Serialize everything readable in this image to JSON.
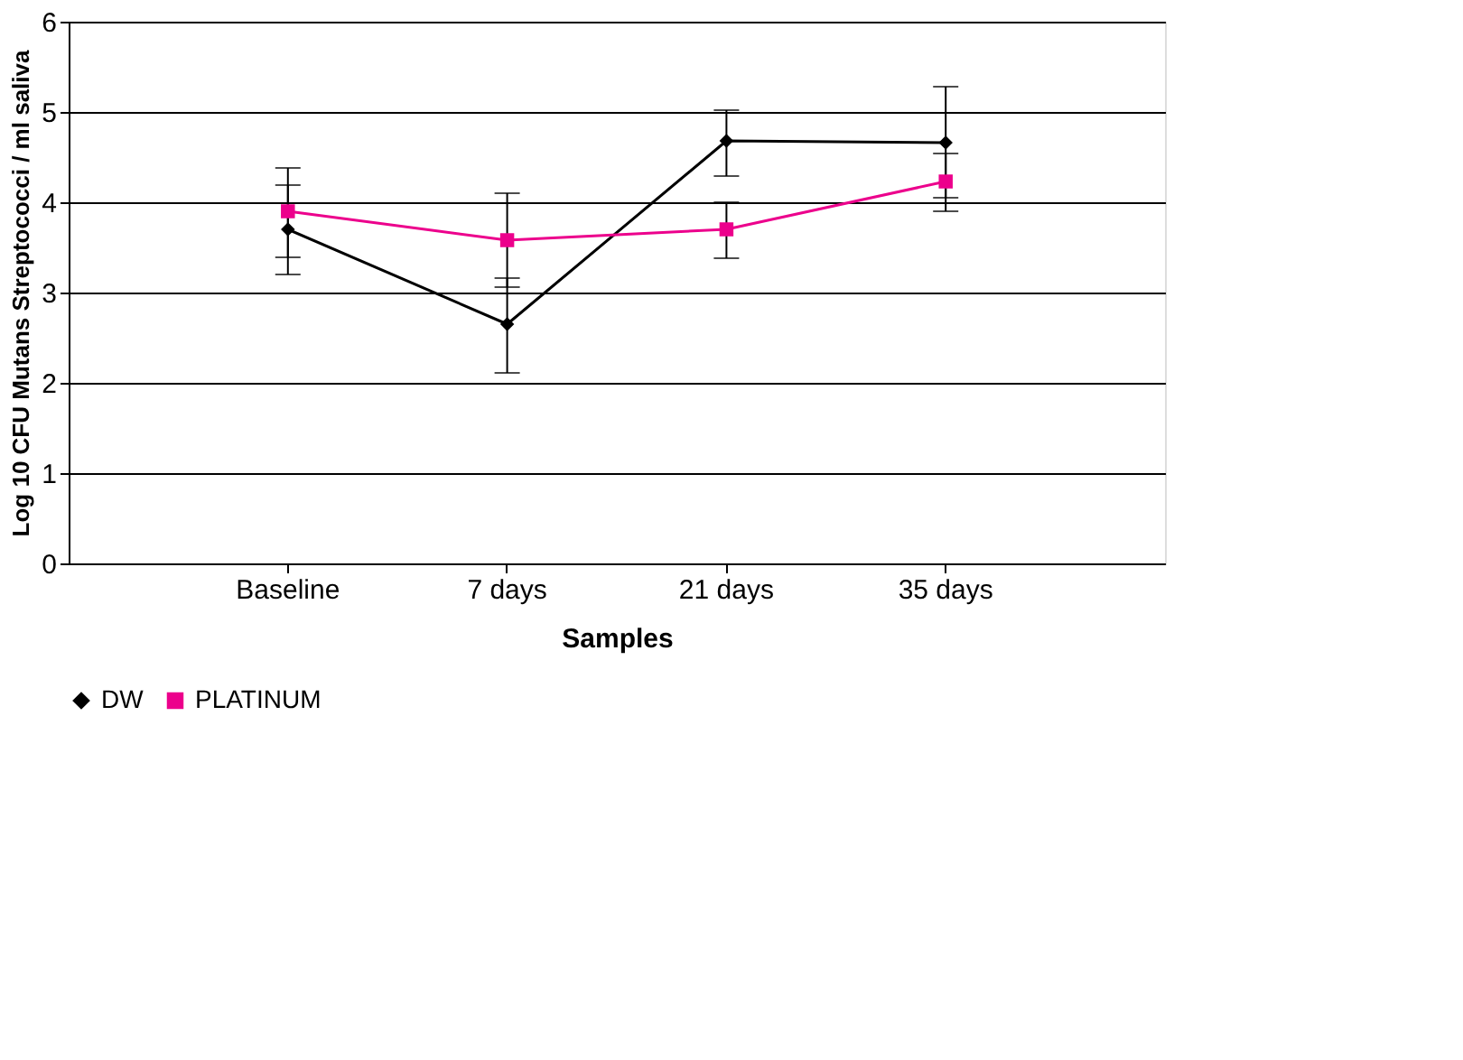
{
  "chart_data": {
    "type": "line",
    "xlabel": "Samples",
    "ylabel": "Log 10 CFU Mutans Streptococci / ml saliva",
    "categories": [
      "Baseline",
      "7 days",
      "21 days",
      "35 days"
    ],
    "series": [
      {
        "name": "DW",
        "color": "#000000",
        "marker": "diamond",
        "values": [
          3.7,
          2.65,
          4.68,
          4.66
        ],
        "errors": [
          [
            3.2,
            4.38
          ],
          [
            2.11,
            3.16
          ],
          [
            4.29,
            5.02
          ],
          [
            3.9,
            5.28
          ]
        ]
      },
      {
        "name": "PLATINUM",
        "color": "#ec008c",
        "marker": "square",
        "values": [
          3.9,
          3.58,
          3.7,
          4.23
        ],
        "errors": [
          [
            3.39,
            4.19
          ],
          [
            3.06,
            4.1
          ],
          [
            3.38,
            4.0
          ],
          [
            4.05,
            4.54
          ]
        ]
      }
    ],
    "ylim": [
      0,
      6
    ],
    "yticks": [
      0,
      1,
      2,
      3,
      4,
      5,
      6
    ],
    "grid": "y",
    "legend": "bottom",
    "line_style": "solid"
  }
}
